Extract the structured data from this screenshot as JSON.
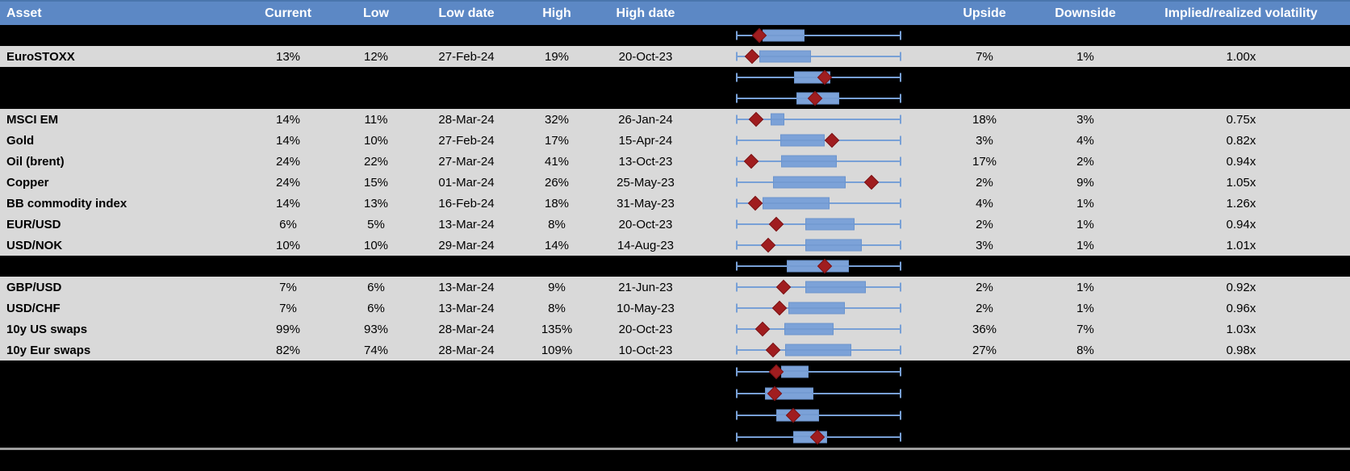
{
  "colors": {
    "header_bg": "#5c88c5",
    "header_top_edge": "#4a76ad",
    "header_text": "#ffffff",
    "row_gray": "#d9d9d9",
    "row_black": "#000000",
    "text": "#000000",
    "box_fill": "#7ca2d8",
    "box_border": "#6b94cd",
    "whisker": "#78a0d6",
    "marker_red": "#a01d1f",
    "marker_border": "#7d1416",
    "divider_gray": "#9e9e9e"
  },
  "table": {
    "header": {
      "asset": "Asset",
      "current": "Current",
      "low": "Low",
      "low_date": "Low date",
      "high": "High",
      "high_date": "High date",
      "upside": "Upside",
      "downside": "Downside",
      "implied": "Implied/realized volatility"
    },
    "rows": [
      {
        "bg": "black",
        "boxplot": 0
      },
      {
        "bg": "gray",
        "boxplot": 1,
        "cells": {
          "asset": "EuroSTOXX",
          "current": "13%",
          "low": "12%",
          "low_date": "27-Feb-24",
          "high": "19%",
          "high_date": "20-Oct-23",
          "upside": "7%",
          "downside": "1%",
          "implied": "1.00x"
        }
      },
      {
        "bg": "black",
        "boxplot": 2
      },
      {
        "bg": "black",
        "boxplot": 3
      },
      {
        "bg": "gray",
        "boxplot": 4,
        "cells": {
          "asset": "MSCI EM",
          "current": "14%",
          "low": "11%",
          "low_date": "28-Mar-24",
          "high": "32%",
          "high_date": "26-Jan-24",
          "upside": "18%",
          "downside": "3%",
          "implied": "0.75x"
        }
      },
      {
        "bg": "gray",
        "boxplot": 5,
        "cells": {
          "asset": "Gold",
          "current": "14%",
          "low": "10%",
          "low_date": "27-Feb-24",
          "high": "17%",
          "high_date": "15-Apr-24",
          "upside": "3%",
          "downside": "4%",
          "implied": "0.82x"
        }
      },
      {
        "bg": "gray",
        "boxplot": 6,
        "cells": {
          "asset": "Oil (brent)",
          "current": "24%",
          "low": "22%",
          "low_date": "27-Mar-24",
          "high": "41%",
          "high_date": "13-Oct-23",
          "upside": "17%",
          "downside": "2%",
          "implied": "0.94x"
        }
      },
      {
        "bg": "gray",
        "boxplot": 7,
        "cells": {
          "asset": "Copper",
          "current": "24%",
          "low": "15%",
          "low_date": "01-Mar-24",
          "high": "26%",
          "high_date": "25-May-23",
          "upside": "2%",
          "downside": "9%",
          "implied": "1.05x"
        }
      },
      {
        "bg": "gray",
        "boxplot": 8,
        "cells": {
          "asset": "BB commodity index",
          "current": "14%",
          "low": "13%",
          "low_date": "16-Feb-24",
          "high": "18%",
          "high_date": "31-May-23",
          "upside": "4%",
          "downside": "1%",
          "implied": "1.26x"
        }
      },
      {
        "bg": "gray",
        "boxplot": 9,
        "cells": {
          "asset": "EUR/USD",
          "current": "6%",
          "low": "5%",
          "low_date": "13-Mar-24",
          "high": "8%",
          "high_date": "20-Oct-23",
          "upside": "2%",
          "downside": "1%",
          "implied": "0.94x"
        }
      },
      {
        "bg": "gray",
        "boxplot": 10,
        "cells": {
          "asset": "USD/NOK",
          "current": "10%",
          "low": "10%",
          "low_date": "29-Mar-24",
          "high": "14%",
          "high_date": "14-Aug-23",
          "upside": "3%",
          "downside": "1%",
          "implied": "1.01x"
        }
      },
      {
        "bg": "black",
        "boxplot": 11
      },
      {
        "bg": "gray",
        "boxplot": 12,
        "cells": {
          "asset": "GBP/USD",
          "current": "7%",
          "low": "6%",
          "low_date": "13-Mar-24",
          "high": "9%",
          "high_date": "21-Jun-23",
          "upside": "2%",
          "downside": "1%",
          "implied": "0.92x"
        }
      },
      {
        "bg": "gray",
        "boxplot": 13,
        "cells": {
          "asset": "USD/CHF",
          "current": "7%",
          "low": "6%",
          "low_date": "13-Mar-24",
          "high": "8%",
          "high_date": "10-May-23",
          "upside": "2%",
          "downside": "1%",
          "implied": "0.96x"
        }
      },
      {
        "bg": "gray",
        "boxplot": 14,
        "cells": {
          "asset": "10y US swaps",
          "current": "99%",
          "low": "93%",
          "low_date": "28-Mar-24",
          "high": "135%",
          "high_date": "20-Oct-23",
          "upside": "36%",
          "downside": "7%",
          "implied": "1.03x"
        }
      },
      {
        "bg": "gray",
        "boxplot": 15,
        "cells": {
          "asset": "10y Eur swaps",
          "current": "82%",
          "low": "74%",
          "low_date": "28-Mar-24",
          "high": "109%",
          "high_date": "10-Oct-23",
          "upside": "27%",
          "downside": "8%",
          "implied": "0.98x"
        }
      },
      {
        "bg": "black",
        "tall": true,
        "boxplot": 16
      },
      {
        "bg": "black",
        "tall": true,
        "boxplot": 17
      },
      {
        "bg": "black",
        "tall": true,
        "boxplot": 18
      },
      {
        "bg": "black",
        "tall": true,
        "boxplot": 19
      }
    ]
  },
  "chart_data": {
    "type": "boxplot",
    "orientation": "horizontal",
    "note": "one small horizontal box-and-whisker per table row; positions normalized 0-1 across the plot span; red diamond = current marker; whiskers all span full range",
    "boxplots": [
      {
        "row_label": "",
        "whisker": [
          0,
          1
        ],
        "box": [
          0.158,
          0.414
        ],
        "marker": 0.138
      },
      {
        "row_label": "EuroSTOXX",
        "whisker": [
          0,
          1
        ],
        "box": [
          0.138,
          0.453
        ],
        "marker": 0.094
      },
      {
        "row_label": "",
        "whisker": [
          0,
          1
        ],
        "box": [
          0.35,
          0.571
        ],
        "marker": 0.537
      },
      {
        "row_label": "",
        "whisker": [
          0,
          1
        ],
        "box": [
          0.364,
          0.626
        ],
        "marker": 0.478
      },
      {
        "row_label": "MSCI EM",
        "whisker": [
          0,
          1
        ],
        "box": [
          0.207,
          0.291
        ],
        "marker": 0.118
      },
      {
        "row_label": "Gold",
        "whisker": [
          0,
          1
        ],
        "box": [
          0.266,
          0.537
        ],
        "marker": 0.581
      },
      {
        "row_label": "Oil (brent)",
        "whisker": [
          0,
          1
        ],
        "box": [
          0.271,
          0.611
        ],
        "marker": 0.089
      },
      {
        "row_label": "Copper",
        "whisker": [
          0,
          1
        ],
        "box": [
          0.222,
          0.665
        ],
        "marker": 0.823
      },
      {
        "row_label": "BB commodity index",
        "whisker": [
          0,
          1
        ],
        "box": [
          0.158,
          0.567
        ],
        "marker": 0.113
      },
      {
        "row_label": "EUR/USD",
        "whisker": [
          0,
          1
        ],
        "box": [
          0.419,
          0.719
        ],
        "marker": 0.241
      },
      {
        "row_label": "USD/NOK",
        "whisker": [
          0,
          1
        ],
        "box": [
          0.419,
          0.764
        ],
        "marker": 0.192
      },
      {
        "row_label": "",
        "whisker": [
          0,
          1
        ],
        "box": [
          0.305,
          0.685
        ],
        "marker": 0.537
      },
      {
        "row_label": "GBP/USD",
        "whisker": [
          0,
          1
        ],
        "box": [
          0.419,
          0.788
        ],
        "marker": 0.286
      },
      {
        "row_label": "USD/CHF",
        "whisker": [
          0,
          1
        ],
        "box": [
          0.315,
          0.66
        ],
        "marker": 0.261
      },
      {
        "row_label": "10y US swaps",
        "whisker": [
          0,
          1
        ],
        "box": [
          0.291,
          0.591
        ],
        "marker": 0.158
      },
      {
        "row_label": "10y Eur swaps",
        "whisker": [
          0,
          1
        ],
        "box": [
          0.296,
          0.7
        ],
        "marker": 0.222
      },
      {
        "row_label": "",
        "whisker": [
          0,
          1
        ],
        "box": [
          0.271,
          0.438
        ],
        "marker": 0.241
      },
      {
        "row_label": "",
        "whisker": [
          0,
          1
        ],
        "box": [
          0.172,
          0.468
        ],
        "marker": 0.232
      },
      {
        "row_label": "",
        "whisker": [
          0,
          1
        ],
        "box": [
          0.241,
          0.502
        ],
        "marker": 0.345
      },
      {
        "row_label": "",
        "whisker": [
          0,
          1
        ],
        "box": [
          0.345,
          0.552
        ],
        "marker": 0.493
      }
    ]
  }
}
